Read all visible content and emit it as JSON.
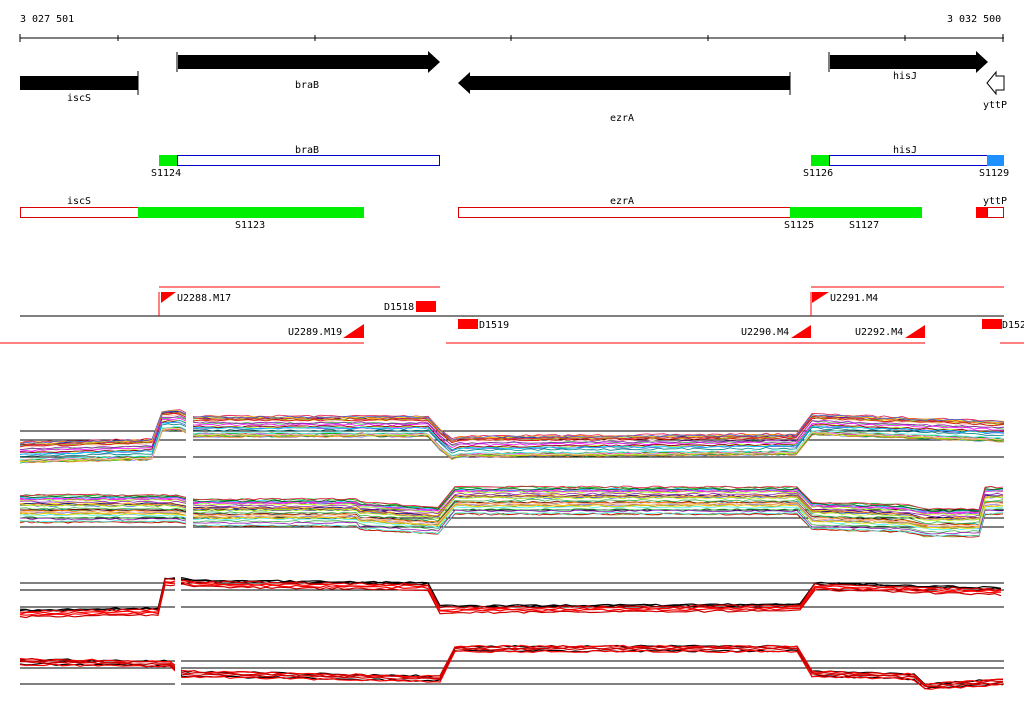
{
  "ruler": {
    "start_label": "3 027 501",
    "end_label": "3 032 500"
  },
  "annotation_track": {
    "genes": [
      {
        "name": "iscS",
        "strand": "none",
        "start": 3027501,
        "end": 3028100
      },
      {
        "name": "braB",
        "strand": "+",
        "start": 3028300,
        "end": 3029630
      },
      {
        "name": "ezrA",
        "strand": "-",
        "start": 3029730,
        "end": 3031196
      },
      {
        "name": "hisJ",
        "strand": "+",
        "start": 3031550,
        "end": 3032340
      },
      {
        "name": "yttP",
        "strand": "-",
        "start": 3032420,
        "end": 3032500
      }
    ]
  },
  "segment_track_1": {
    "gene_labels": [
      "braB",
      "hisJ"
    ],
    "segment_labels": [
      "S1124",
      "S1126",
      "S1129"
    ]
  },
  "segment_track_2": {
    "gene_labels": [
      "iscS",
      "ezrA",
      "yttP"
    ],
    "segment_labels": [
      "S1123",
      "S1125",
      "S1127"
    ]
  },
  "feature_track": {
    "labels": [
      "U2288.M17",
      "D1518",
      "U2289.M19",
      "D1519",
      "U2290.M4",
      "U2291.M4",
      "U2292.M4",
      "D152"
    ]
  },
  "colors": {
    "arrow": "#000000",
    "green_segment": "#00ee00",
    "blue_segment": "#1e90ff",
    "red_segment": "#ff0000",
    "outline_blue": "#0000cc",
    "outline_red": "#dd0000",
    "expression_highlight": "#ff0000"
  }
}
